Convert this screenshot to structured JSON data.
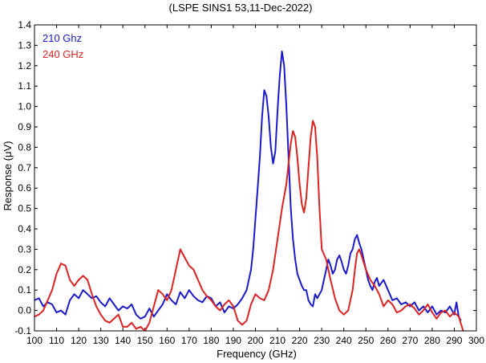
{
  "chart_data": {
    "type": "line",
    "title": "(LSPE SINS1 53,11-Dec-2022)",
    "xlabel": "Frequency (GHz)",
    "ylabel": "Response (μV)",
    "xlim": [
      100,
      300
    ],
    "ylim": [
      -0.1,
      1.4
    ],
    "xticks": [
      100,
      110,
      120,
      130,
      140,
      150,
      160,
      170,
      180,
      190,
      200,
      210,
      220,
      230,
      240,
      250,
      260,
      270,
      280,
      290,
      300
    ],
    "yticks": [
      -0.1,
      0,
      0.1,
      0.2,
      0.3,
      0.4,
      0.5,
      0.6,
      0.7,
      0.8,
      0.9,
      1.0,
      1.1,
      1.2,
      1.3,
      1.4
    ],
    "ytick_labels": [
      "-0.1",
      "0.0",
      "0.1",
      "0.2",
      "0.3",
      "0.4",
      "0.5",
      "0.6",
      "0.7",
      "0.8",
      "0.9",
      "1.0",
      "1.1",
      "1.2",
      "1.3",
      "1.4"
    ],
    "grid": false,
    "legend_position": "top-left",
    "series": [
      {
        "name": "210 Ghz",
        "color": "#1a1acc",
        "x": [
          100,
          102,
          104,
          106,
          108,
          110,
          112,
          114,
          116,
          118,
          120,
          122,
          124,
          126,
          128,
          130,
          132,
          134,
          136,
          138,
          140,
          142,
          144,
          146,
          148,
          150,
          152,
          154,
          156,
          158,
          160,
          162,
          164,
          166,
          168,
          170,
          172,
          174,
          176,
          178,
          180,
          182,
          184,
          186,
          188,
          190,
          192,
          194,
          196,
          198,
          199,
          200,
          201,
          202,
          203,
          204,
          205,
          206,
          207,
          208,
          209,
          210,
          211,
          212,
          213,
          214,
          215,
          216,
          217,
          218,
          219,
          220,
          221,
          222,
          223,
          224,
          225,
          226,
          227,
          228,
          229,
          230,
          231,
          232,
          233,
          234,
          235,
          236,
          237,
          238,
          239,
          240,
          241,
          242,
          243,
          244,
          245,
          246,
          247,
          248,
          249,
          250,
          251,
          252,
          253,
          254,
          255,
          256,
          258,
          260,
          262,
          264,
          266,
          268,
          270,
          272,
          274,
          276,
          278,
          280,
          282,
          284,
          286,
          288,
          290,
          291,
          292,
          293
        ],
        "values": [
          0.05,
          0.06,
          0.02,
          0.04,
          0.03,
          -0.01,
          0.0,
          -0.02,
          0.05,
          0.08,
          0.06,
          0.1,
          0.08,
          0.06,
          0.07,
          0.04,
          0.02,
          0.06,
          0.03,
          0.0,
          0.02,
          0.01,
          0.03,
          -0.02,
          -0.04,
          -0.03,
          0.01,
          -0.03,
          0.0,
          0.03,
          0.08,
          0.05,
          0.03,
          0.09,
          0.06,
          0.1,
          0.07,
          0.05,
          0.04,
          0.07,
          0.06,
          0.02,
          0.04,
          -0.01,
          0.02,
          0.01,
          0.03,
          0.06,
          0.1,
          0.2,
          0.3,
          0.45,
          0.6,
          0.75,
          0.95,
          1.08,
          1.05,
          0.95,
          0.8,
          0.72,
          0.78,
          0.98,
          1.15,
          1.27,
          1.2,
          1.0,
          0.75,
          0.5,
          0.35,
          0.25,
          0.18,
          0.15,
          0.12,
          0.1,
          0.1,
          0.05,
          0.03,
          0.02,
          0.08,
          0.06,
          0.08,
          0.1,
          0.15,
          0.2,
          0.25,
          0.22,
          0.18,
          0.2,
          0.25,
          0.27,
          0.24,
          0.2,
          0.18,
          0.22,
          0.28,
          0.3,
          0.35,
          0.37,
          0.33,
          0.3,
          0.25,
          0.2,
          0.15,
          0.12,
          0.1,
          0.14,
          0.16,
          0.12,
          0.15,
          0.1,
          0.05,
          0.06,
          0.03,
          0.04,
          0.02,
          0.04,
          0.0,
          0.02,
          -0.01,
          0.02,
          -0.02,
          0.0,
          -0.01,
          0.02,
          -0.02,
          0.04,
          -0.03,
          -0.05
        ]
      },
      {
        "name": "240 GHz",
        "color": "#dd2222",
        "x": [
          100,
          102,
          104,
          106,
          108,
          110,
          112,
          114,
          116,
          118,
          120,
          122,
          124,
          126,
          128,
          130,
          132,
          134,
          136,
          138,
          140,
          142,
          144,
          146,
          148,
          150,
          152,
          154,
          156,
          158,
          160,
          162,
          164,
          166,
          168,
          170,
          172,
          174,
          176,
          178,
          180,
          182,
          184,
          186,
          188,
          190,
          192,
          194,
          196,
          198,
          200,
          202,
          204,
          206,
          208,
          210,
          212,
          214,
          215,
          216,
          217,
          218,
          219,
          220,
          221,
          222,
          223,
          224,
          225,
          226,
          227,
          228,
          229,
          230,
          232,
          234,
          236,
          238,
          240,
          242,
          244,
          245,
          246,
          247,
          248,
          250,
          252,
          254,
          256,
          258,
          260,
          262,
          264,
          266,
          268,
          270,
          272,
          274,
          276,
          278,
          280,
          282,
          284,
          286,
          288,
          290,
          292,
          294
        ],
        "values": [
          -0.03,
          -0.02,
          0.0,
          0.05,
          0.1,
          0.18,
          0.23,
          0.22,
          0.15,
          0.12,
          0.15,
          0.17,
          0.15,
          0.08,
          0.02,
          -0.02,
          -0.05,
          -0.06,
          -0.04,
          -0.02,
          -0.08,
          -0.08,
          -0.06,
          -0.09,
          -0.08,
          -0.1,
          -0.06,
          0.02,
          0.1,
          0.08,
          0.05,
          0.1,
          0.2,
          0.3,
          0.26,
          0.22,
          0.2,
          0.15,
          0.1,
          0.07,
          0.05,
          0.02,
          0.0,
          0.03,
          0.05,
          0.02,
          -0.05,
          -0.07,
          -0.05,
          0.03,
          0.08,
          0.06,
          0.05,
          0.1,
          0.2,
          0.35,
          0.5,
          0.62,
          0.72,
          0.82,
          0.88,
          0.85,
          0.75,
          0.62,
          0.52,
          0.48,
          0.55,
          0.7,
          0.85,
          0.93,
          0.9,
          0.75,
          0.5,
          0.3,
          0.25,
          0.15,
          0.06,
          0.0,
          -0.02,
          0.0,
          0.1,
          0.2,
          0.28,
          0.3,
          0.27,
          0.2,
          0.15,
          0.12,
          0.08,
          0.02,
          0.05,
          0.03,
          -0.01,
          0.0,
          0.02,
          0.03,
          0.01,
          -0.02,
          0.0,
          0.03,
          -0.01,
          -0.04,
          -0.01,
          0.0,
          -0.03,
          -0.01,
          -0.03,
          -0.1
        ]
      }
    ]
  }
}
